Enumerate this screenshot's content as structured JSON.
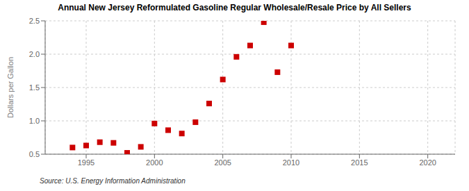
{
  "chart_data": {
    "type": "scatter",
    "title": "Annual New Jersey Reformulated Gasoline Regular Wholesale/Resale Price by All Sellers",
    "ylabel": "Dollars per Gallon",
    "annotations": [
      "Source: U.S. Energy Information Administration"
    ],
    "x": [
      1994,
      1995,
      1996,
      1997,
      1998,
      1999,
      2000,
      2001,
      2002,
      2003,
      2004,
      2005,
      2006,
      2007,
      2008,
      2009,
      2010
    ],
    "values": [
      0.6,
      0.63,
      0.68,
      0.67,
      0.52,
      0.61,
      0.96,
      0.86,
      0.81,
      0.98,
      1.26,
      1.62,
      1.96,
      2.13,
      2.48,
      1.73,
      2.13
    ],
    "color": "#cc0000",
    "marker": "square",
    "xlim": [
      1992,
      2022
    ],
    "xticks": [
      1995,
      2000,
      2005,
      2010,
      2015,
      2020
    ],
    "ylim": [
      0.5,
      2.5
    ],
    "yticks": [
      0.5,
      {
        "value": 1.0,
        "label": "1.0"
      },
      1.5,
      {
        "value": 2.0,
        "label": "2.0"
      },
      2.5
    ],
    "grid": true
  }
}
